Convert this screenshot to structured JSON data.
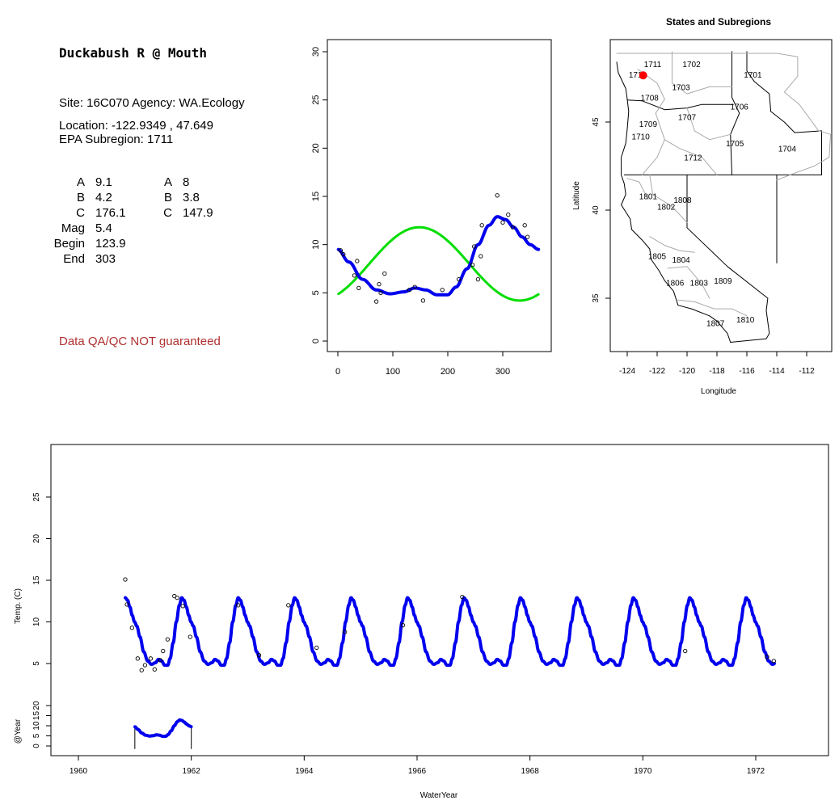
{
  "site_panel": {
    "title": "Duckabush R @ Mouth",
    "site_line": "Site: 16C070     Agency: WA.Ecology",
    "location_line": "Location: -122.9349 , 47.649",
    "subregion_line": "EPA Subregion: 1711",
    "params_left": [
      {
        "label": "A",
        "value": "9.1"
      },
      {
        "label": "B",
        "value": "4.2"
      },
      {
        "label": "C",
        "value": "176.1"
      },
      {
        "label": "Mag",
        "value": "5.4"
      },
      {
        "label": "Begin",
        "value": "123.9"
      },
      {
        "label": "End",
        "value": "303"
      }
    ],
    "params_right": [
      {
        "label": "A",
        "value": "8"
      },
      {
        "label": "B",
        "value": "3.8"
      },
      {
        "label": "C",
        "value": "147.9"
      }
    ],
    "disclaimer": "Data QA/QC NOT guaranteed"
  },
  "colors": {
    "fit_blue": "#0000ee",
    "fit_green": "#00dd00",
    "site_marker": "#ff0000",
    "disclaimer": "#b03030"
  },
  "chart_data": [
    {
      "type": "scatter",
      "panel": "seasonal",
      "xlim": [
        0,
        365
      ],
      "ylim": [
        0,
        30
      ],
      "x_ticks": [
        "0",
        "100",
        "200",
        "300"
      ],
      "y_ticks": [
        "0",
        "5",
        "10",
        "15",
        "20",
        "25",
        "30"
      ],
      "points": [
        [
          5,
          9.4
        ],
        [
          10,
          9.0
        ],
        [
          30,
          6.8
        ],
        [
          35,
          8.3
        ],
        [
          38,
          5.5
        ],
        [
          70,
          4.1
        ],
        [
          75,
          5.9
        ],
        [
          78,
          5.0
        ],
        [
          85,
          7.0
        ],
        [
          130,
          5.3
        ],
        [
          140,
          5.6
        ],
        [
          155,
          4.2
        ],
        [
          190,
          5.3
        ],
        [
          220,
          6.4
        ],
        [
          245,
          7.9
        ],
        [
          248,
          9.8
        ],
        [
          255,
          6.4
        ],
        [
          260,
          8.8
        ],
        [
          262,
          12.0
        ],
        [
          290,
          15.1
        ],
        [
          300,
          12.3
        ],
        [
          310,
          13.1
        ],
        [
          318,
          11.8
        ],
        [
          340,
          12.0
        ],
        [
          345,
          10.8
        ]
      ],
      "series": [
        {
          "color": "#0000ee",
          "A": 9.1,
          "B": 4.2,
          "C": 176.1,
          "Mag": 5.4,
          "Begin": 123.9,
          "End": 303
        },
        {
          "color": "#00dd00",
          "A": 8,
          "B": 3.8,
          "C": 147.9
        }
      ]
    },
    {
      "type": "map",
      "panel": "regions",
      "title": "States and Subregions",
      "xlabel": "Longitude",
      "ylabel": "Latitude",
      "xlim": [
        -125,
        -111
      ],
      "ylim": [
        32,
        49.5
      ],
      "x_ticks": [
        "-124",
        "-122",
        "-120",
        "-118",
        "-116",
        "-114",
        "-112"
      ],
      "y_ticks": [
        "35",
        "40",
        "45"
      ],
      "site": {
        "lon": -122.9349,
        "lat": 47.649
      },
      "region_labels": [
        {
          "text": "1702",
          "lon": -119.7,
          "lat": 48.3
        },
        {
          "text": "1701",
          "lon": -115.6,
          "lat": 47.7
        },
        {
          "text": "1711",
          "lon": -122.3,
          "lat": 48.3
        },
        {
          "text": "1710",
          "lon": -123.3,
          "lat": 47.7
        },
        {
          "text": "1703",
          "lon": -120.4,
          "lat": 47.0
        },
        {
          "text": "1708",
          "lon": -122.5,
          "lat": 46.4
        },
        {
          "text": "1706",
          "lon": -116.5,
          "lat": 45.9
        },
        {
          "text": "1707",
          "lon": -120.0,
          "lat": 45.3
        },
        {
          "text": "1709",
          "lon": -122.6,
          "lat": 44.9
        },
        {
          "text": "1710",
          "lon": -123.1,
          "lat": 44.2
        },
        {
          "text": "1705",
          "lon": -116.8,
          "lat": 43.8
        },
        {
          "text": "1704",
          "lon": -113.3,
          "lat": 43.5
        },
        {
          "text": "1712",
          "lon": -119.6,
          "lat": 43.0
        },
        {
          "text": "1801",
          "lon": -122.6,
          "lat": 40.8
        },
        {
          "text": "1808",
          "lon": -120.3,
          "lat": 40.6
        },
        {
          "text": "1802",
          "lon": -121.4,
          "lat": 40.2
        },
        {
          "text": "1805",
          "lon": -122.0,
          "lat": 37.4
        },
        {
          "text": "1804",
          "lon": -120.4,
          "lat": 37.2
        },
        {
          "text": "1806",
          "lon": -120.8,
          "lat": 35.9
        },
        {
          "text": "1803",
          "lon": -119.2,
          "lat": 35.9
        },
        {
          "text": "1809",
          "lon": -117.6,
          "lat": 36.0
        },
        {
          "text": "1807",
          "lon": -118.1,
          "lat": 33.6
        },
        {
          "text": "1810",
          "lon": -116.1,
          "lat": 33.8
        }
      ]
    },
    {
      "type": "line",
      "panel": "timeseries",
      "xlabel": "WaterYear",
      "ylabel": "Temp. (C)",
      "xlim": [
        1959.5,
        1973.4
      ],
      "ylim": [
        -6.3,
        30
      ],
      "x_ticks": [
        "1960",
        "1962",
        "1964",
        "1966",
        "1968",
        "1970",
        "1972"
      ],
      "y_ticks": [
        "5",
        "10",
        "15",
        "20",
        "25"
      ],
      "series_range": [
        1960.83,
        1972.33
      ],
      "points": [
        [
          1960.83,
          15.1
        ],
        [
          1960.86,
          12.1
        ],
        [
          1960.95,
          9.3
        ],
        [
          1961.05,
          5.6
        ],
        [
          1961.12,
          4.2
        ],
        [
          1961.18,
          4.8
        ],
        [
          1961.28,
          5.6
        ],
        [
          1961.35,
          4.3
        ],
        [
          1961.45,
          5.4
        ],
        [
          1961.5,
          6.5
        ],
        [
          1961.58,
          7.9
        ],
        [
          1961.7,
          13.1
        ],
        [
          1961.75,
          12.9
        ],
        [
          1961.85,
          11.9
        ],
        [
          1961.98,
          8.2
        ],
        [
          1962.83,
          12.0
        ],
        [
          1963.2,
          6.0
        ],
        [
          1963.72,
          12.0
        ],
        [
          1964.22,
          6.9
        ],
        [
          1964.72,
          8.8
        ],
        [
          1965.75,
          9.6
        ],
        [
          1966.8,
          13.0
        ],
        [
          1970.75,
          6.5
        ],
        [
          1972.2,
          5.8
        ],
        [
          1972.32,
          5.3
        ]
      ]
    },
    {
      "type": "line",
      "panel": "year-inset",
      "ylabel": "@Year",
      "y_ticks": [
        "0",
        "5",
        "10",
        "15",
        "20"
      ],
      "ylim": [
        -3,
        22
      ],
      "x_range": [
        1961,
        1962
      ]
    }
  ]
}
